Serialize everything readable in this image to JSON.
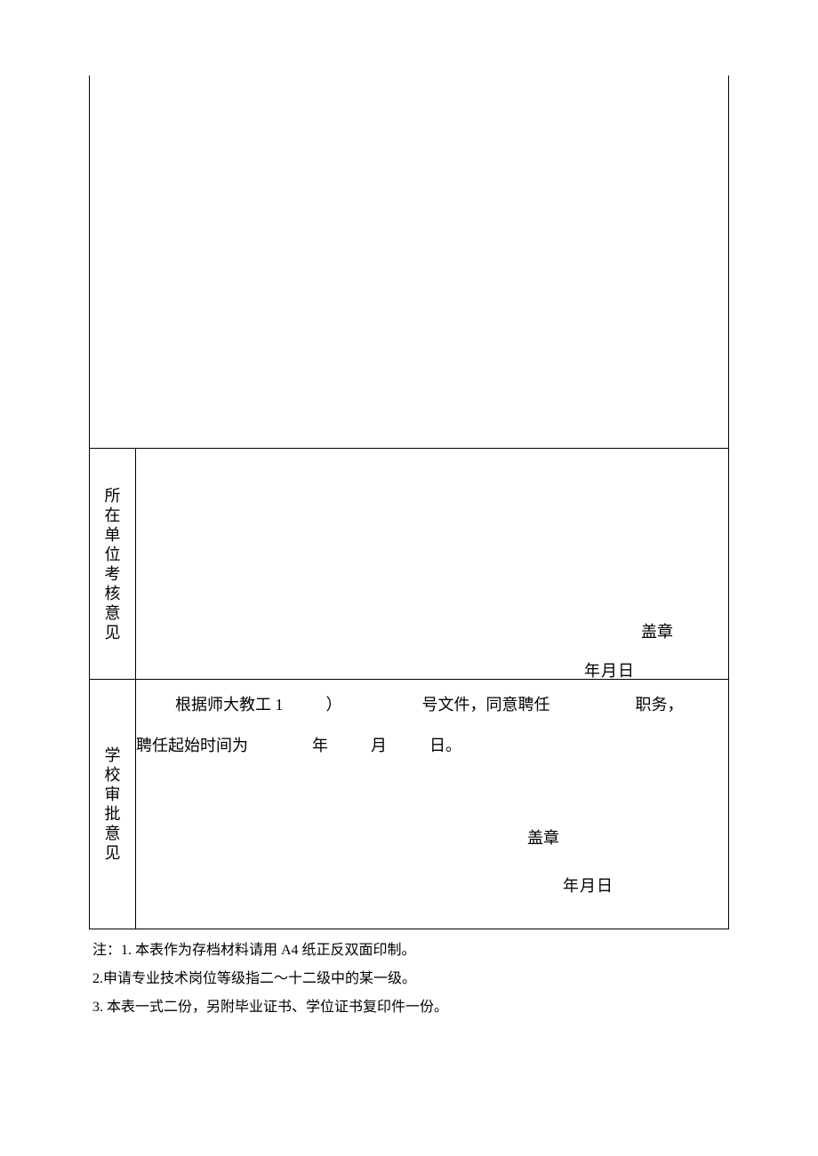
{
  "labels": {
    "unit_opinion": "所在单位考核意见",
    "school_opinion": "学校审批意见"
  },
  "mid": {
    "stamp": "盖章",
    "date": "年月日"
  },
  "bot": {
    "line1_a": "根据师大教工 1",
    "line1_b": "）",
    "line1_c": "号文件，同意聘任",
    "line1_d": "职务，",
    "line2_a": "聘任起始时间为",
    "line2_y": "年",
    "line2_m": "月",
    "line2_d": "日。",
    "stamp": "盖章",
    "date": "年月日"
  },
  "notes": {
    "n1": "注：1. 本表作为存档材料请用 A4 纸正反双面印制。",
    "n2": "2.申请专业技术岗位等级指二～十二级中的某一级。",
    "n3": "3. 本表一式二份，另附毕业证书、学位证书复印件一份。"
  }
}
